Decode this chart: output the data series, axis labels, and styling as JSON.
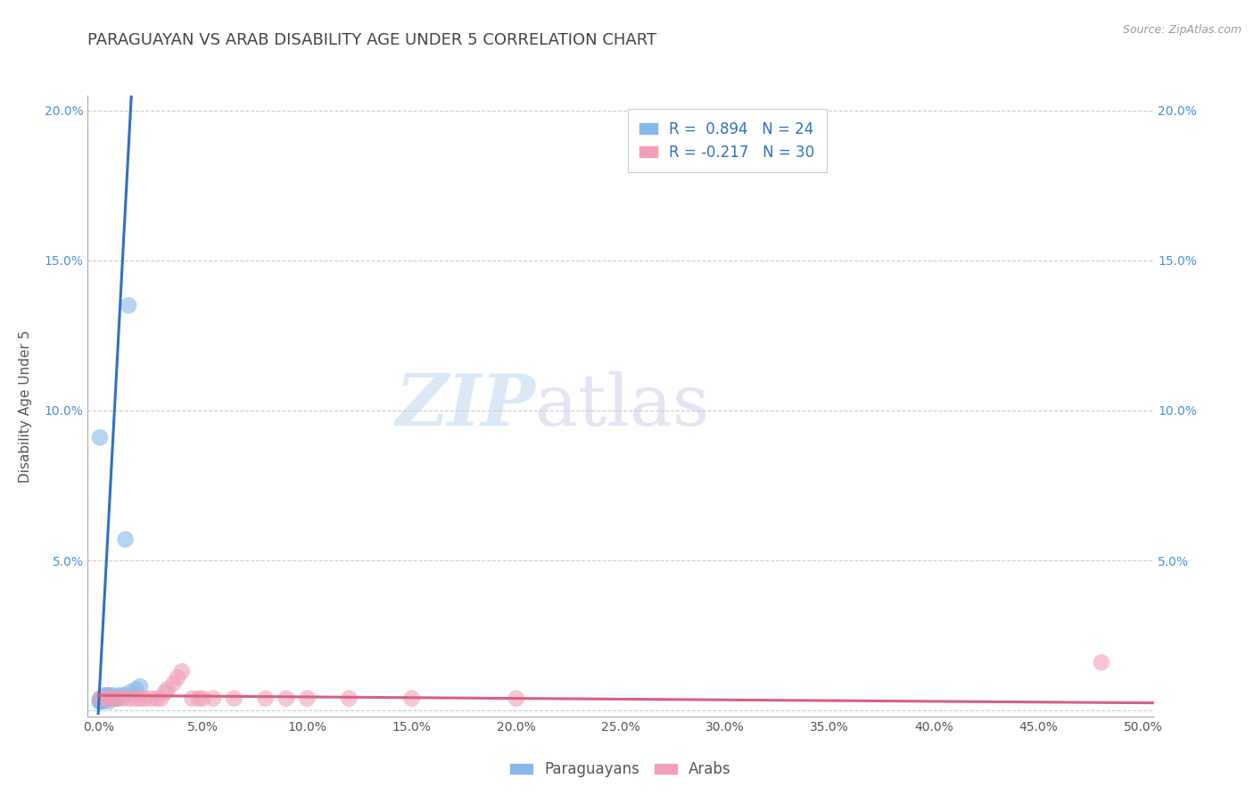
{
  "title": "PARAGUAYAN VS ARAB DISABILITY AGE UNDER 5 CORRELATION CHART",
  "source": "Source: ZipAtlas.com",
  "ylabel": "Disability Age Under 5",
  "xlabel": "",
  "xlim": [
    -0.005,
    0.505
  ],
  "ylim": [
    -0.002,
    0.205
  ],
  "xticks": [
    0.0,
    0.05,
    0.1,
    0.15,
    0.2,
    0.25,
    0.3,
    0.35,
    0.4,
    0.45,
    0.5
  ],
  "yticks": [
    0.0,
    0.05,
    0.1,
    0.15,
    0.2
  ],
  "xtick_labels": [
    "0.0%",
    "5.0%",
    "10.0%",
    "15.0%",
    "20.0%",
    "25.0%",
    "30.0%",
    "35.0%",
    "40.0%",
    "45.0%",
    "50.0%"
  ],
  "ytick_labels_left": [
    "",
    "5.0%",
    "10.0%",
    "15.0%",
    "20.0%"
  ],
  "ytick_labels_right": [
    "",
    "5.0%",
    "10.0%",
    "15.0%",
    "20.0%"
  ],
  "legend_r1": "R =  0.894   N = 24",
  "legend_r2": "R = -0.217   N = 30",
  "paraguayan_color": "#85b8e8",
  "arab_color": "#f0a0b8",
  "blue_line_color": "#3070c0",
  "pink_line_color": "#d86080",
  "watermark_zip": "ZIP",
  "watermark_atlas": "atlas",
  "background_color": "#ffffff",
  "grid_color": "#cccccc",
  "title_color": "#444444",
  "right_tick_color": "#4a90d9",
  "left_tick_color": "#4a90d9",
  "title_fontsize": 13,
  "axis_label_fontsize": 11,
  "tick_fontsize": 10,
  "legend_fontsize": 12,
  "paraguayan_x": [
    0.0005,
    0.001,
    0.001,
    0.0015,
    0.002,
    0.002,
    0.003,
    0.003,
    0.004,
    0.004,
    0.005,
    0.005,
    0.006,
    0.007,
    0.008,
    0.009,
    0.01,
    0.012,
    0.015,
    0.018,
    0.02,
    0.0008,
    0.013,
    0.0145
  ],
  "paraguayan_y": [
    0.003,
    0.003,
    0.004,
    0.003,
    0.004,
    0.003,
    0.004,
    0.005,
    0.004,
    0.005,
    0.003,
    0.005,
    0.004,
    0.005,
    0.004,
    0.004,
    0.005,
    0.005,
    0.006,
    0.007,
    0.008,
    0.091,
    0.057,
    0.135
  ],
  "arab_x": [
    0.001,
    0.003,
    0.005,
    0.007,
    0.01,
    0.012,
    0.015,
    0.018,
    0.02,
    0.022,
    0.025,
    0.028,
    0.03,
    0.032,
    0.033,
    0.036,
    0.038,
    0.04,
    0.045,
    0.048,
    0.05,
    0.055,
    0.065,
    0.08,
    0.09,
    0.1,
    0.12,
    0.15,
    0.2,
    0.48
  ],
  "arab_y": [
    0.004,
    0.004,
    0.004,
    0.004,
    0.004,
    0.004,
    0.004,
    0.004,
    0.004,
    0.004,
    0.004,
    0.004,
    0.004,
    0.006,
    0.007,
    0.009,
    0.011,
    0.013,
    0.004,
    0.004,
    0.004,
    0.004,
    0.004,
    0.004,
    0.004,
    0.004,
    0.004,
    0.004,
    0.004,
    0.016
  ],
  "par_line_x": [
    0.0,
    0.016
  ],
  "par_line_y": [
    -0.001,
    0.207
  ],
  "arab_line_x": [
    0.0,
    0.505
  ],
  "arab_line_y": [
    0.005,
    0.0025
  ]
}
